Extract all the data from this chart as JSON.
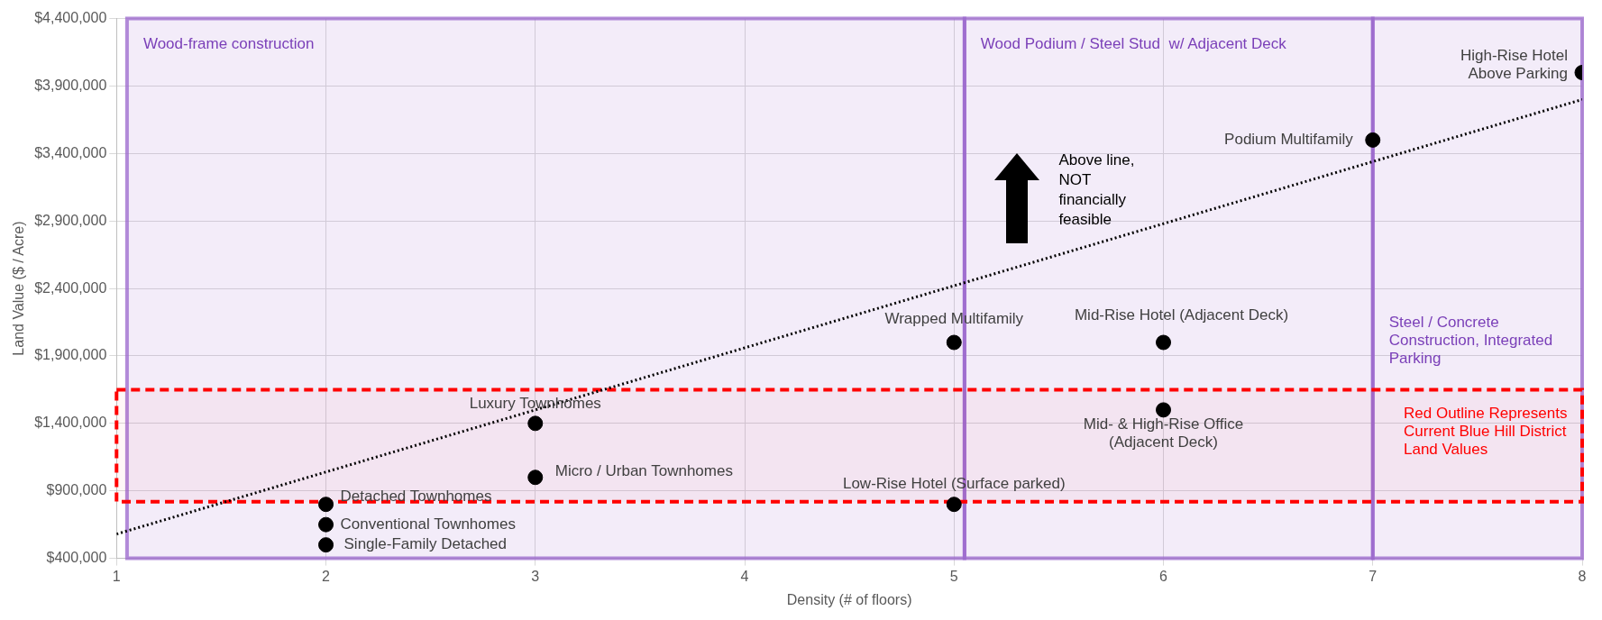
{
  "chart_data": {
    "type": "scatter",
    "xlabel": "Density (# of floors)",
    "ylabel": "Land Value ($ / Acre)",
    "xlim": [
      1,
      8
    ],
    "xticks": [
      1,
      2,
      3,
      4,
      5,
      6,
      7,
      8
    ],
    "ylim": [
      400000,
      4400000
    ],
    "yticks": [
      {
        "value": 400000,
        "label": "$400,000"
      },
      {
        "value": 900000,
        "label": "$900,000"
      },
      {
        "value": 1400000,
        "label": "$1,400,000"
      },
      {
        "value": 1900000,
        "label": "$1,900,000"
      },
      {
        "value": 2400000,
        "label": "$2,400,000"
      },
      {
        "value": 2900000,
        "label": "$2,900,000"
      },
      {
        "value": 3400000,
        "label": "$3,400,000"
      },
      {
        "value": 3900000,
        "label": "$3,900,000"
      },
      {
        "value": 4400000,
        "label": "$4,400,000"
      }
    ],
    "grid": true,
    "marker": "circle",
    "series": [
      {
        "name": "Detached Townhomes",
        "color": "#000000",
        "x": [
          2
        ],
        "values": [
          800000
        ]
      },
      {
        "name": "Conventional Townhomes",
        "color": "#000000",
        "x": [
          2
        ],
        "values": [
          650000
        ]
      },
      {
        "name": "Single-Family Detached",
        "color": "#000000",
        "x": [
          2
        ],
        "values": [
          500000
        ]
      },
      {
        "name": "Luxury Townhomes",
        "color": "#000000",
        "x": [
          3
        ],
        "values": [
          1400000
        ]
      },
      {
        "name": "Micro / Urban Townhomes",
        "color": "#000000",
        "x": [
          3
        ],
        "values": [
          1000000
        ]
      },
      {
        "name": "Wrapped Multifamily",
        "color": "#000000",
        "x": [
          5
        ],
        "values": [
          2000000
        ]
      },
      {
        "name": "Low-Rise Hotel (Surface parked)",
        "color": "#000000",
        "x": [
          5
        ],
        "values": [
          800000
        ]
      },
      {
        "name": "Mid-Rise Hotel (Adjacent Deck)",
        "color": "#000000",
        "x": [
          6
        ],
        "values": [
          2000000
        ]
      },
      {
        "name": "Mid- & High-Rise Office (Adjacent Deck)",
        "color": "#000000",
        "x": [
          6
        ],
        "values": [
          1500000
        ]
      },
      {
        "name": "Podium Multifamily",
        "color": "#000000",
        "x": [
          7
        ],
        "values": [
          3500000
        ]
      },
      {
        "name": "High-Rise Hotel Above Parking",
        "color": "#000000",
        "x": [
          8
        ],
        "values": [
          4000000
        ]
      },
      {
        "type": "line",
        "color": "#000000",
        "x": [
          1,
          8
        ],
        "values": [
          580000,
          3800000
        ],
        "line_style": "dotted",
        "marker": "none"
      }
    ],
    "bands": [
      {
        "axis": "x",
        "from": 1.05,
        "to": 5.05,
        "label": "Wood-frame construction",
        "color": "#9966cc"
      },
      {
        "axis": "x",
        "from": 5.05,
        "to": 7,
        "label": "Wood Podium / Steel Stud  w/ Adjacent Deck",
        "color": "#9966cc"
      },
      {
        "axis": "x",
        "from": 7,
        "to": 8,
        "label": "Steel / Concrete Construction, Integrated Parking",
        "color": "#9966cc"
      },
      {
        "axis": "y",
        "from": 820000,
        "to": 1650000,
        "label": "Red Outline Represents Current Blue Hill District Land Values",
        "color": "#ff0000"
      }
    ],
    "annotations": [
      "Above line, NOT financially feasible"
    ]
  }
}
